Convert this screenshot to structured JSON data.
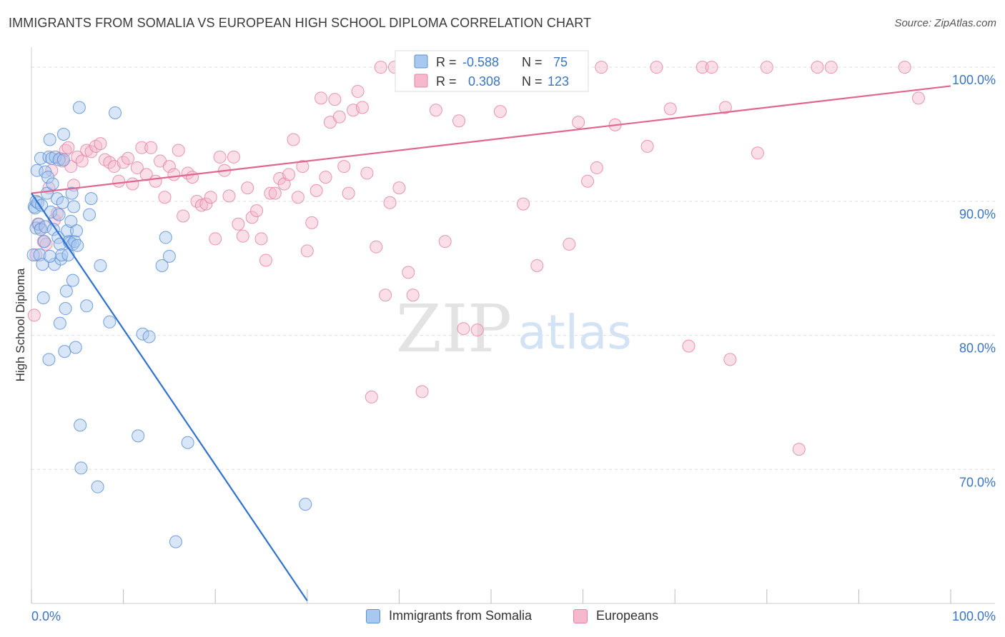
{
  "header": {
    "title": "IMMIGRANTS FROM SOMALIA VS EUROPEAN HIGH SCHOOL DIPLOMA CORRELATION CHART",
    "source": "Source: ZipAtlas.com"
  },
  "watermark": {
    "part1": "ZIP",
    "part2": "atlas"
  },
  "legend_top": {
    "rows": [
      {
        "r_label": "R = ",
        "r_value": "-0.588",
        "n_label": "N = ",
        "n_value": "75"
      },
      {
        "r_label": "R = ",
        "r_value": "0.308",
        "n_label": "N = ",
        "n_value": "123"
      }
    ]
  },
  "chart_data": {
    "type": "scatter",
    "title": "IMMIGRANTS FROM SOMALIA VS EUROPEAN HIGH SCHOOL DIPLOMA CORRELATION CHART",
    "xlabel": "",
    "ylabel": "High School Diploma",
    "xlim": [
      0,
      100
    ],
    "ylim": [
      60,
      101.5
    ],
    "x_tick_labels": [
      "0.0%",
      "100.0%"
    ],
    "y_ticks": [
      {
        "value": 70,
        "label": "70.0%"
      },
      {
        "value": 80,
        "label": "80.0%"
      },
      {
        "value": 90,
        "label": "90.0%"
      },
      {
        "value": 100,
        "label": "100.0%"
      }
    ],
    "grid": true,
    "legend_placement": "bottom",
    "colors": {
      "blue_fill": "#a8c8f0",
      "blue_stroke": "#5b8fd6",
      "blue_line": "#2f72d0",
      "pink_fill": "#f5b8cd",
      "pink_stroke": "#e583a6",
      "pink_line": "#e0668f",
      "tick_text": "#3b74c4",
      "grid": "#dddddd"
    },
    "series": [
      {
        "name": "Immigrants from Somalia",
        "r": -0.588,
        "n": 75,
        "trend": {
          "x0": 0,
          "y0": 90.6,
          "x1": 30.0,
          "y1": 60.2
        },
        "points": [
          [
            0.2,
            86.0
          ],
          [
            0.3,
            89.6
          ],
          [
            0.4,
            89.5
          ],
          [
            0.5,
            90.0
          ],
          [
            0.5,
            88.0
          ],
          [
            0.6,
            92.3
          ],
          [
            0.7,
            89.9
          ],
          [
            0.8,
            88.3
          ],
          [
            0.9,
            86.0
          ],
          [
            1.0,
            93.2
          ],
          [
            1.0,
            87.9
          ],
          [
            1.1,
            89.7
          ],
          [
            1.2,
            85.3
          ],
          [
            1.3,
            82.8
          ],
          [
            1.4,
            87.0
          ],
          [
            1.5,
            88.1
          ],
          [
            1.5,
            92.2
          ],
          [
            1.7,
            90.6
          ],
          [
            1.8,
            91.8
          ],
          [
            1.9,
            93.3
          ],
          [
            1.9,
            78.2
          ],
          [
            2.0,
            94.6
          ],
          [
            2.1,
            89.2
          ],
          [
            2.2,
            93.2
          ],
          [
            2.3,
            91.3
          ],
          [
            2.4,
            87.9
          ],
          [
            2.5,
            85.3
          ],
          [
            2.6,
            93.3
          ],
          [
            2.8,
            90.2
          ],
          [
            2.9,
            87.3
          ],
          [
            3.0,
            93.1
          ],
          [
            3.1,
            86.8
          ],
          [
            3.1,
            80.9
          ],
          [
            3.2,
            85.7
          ],
          [
            3.3,
            86.0
          ],
          [
            3.4,
            89.9
          ],
          [
            3.5,
            95.0
          ],
          [
            3.5,
            93.1
          ],
          [
            3.6,
            78.8
          ],
          [
            3.7,
            82.0
          ],
          [
            3.8,
            83.3
          ],
          [
            3.9,
            87.8
          ],
          [
            4.0,
            86.0
          ],
          [
            4.1,
            87.0
          ],
          [
            4.2,
            86.9
          ],
          [
            4.3,
            88.5
          ],
          [
            4.4,
            90.6
          ],
          [
            4.5,
            86.8
          ],
          [
            4.5,
            84.1
          ],
          [
            4.6,
            89.6
          ],
          [
            4.7,
            87.0
          ],
          [
            4.8,
            79.1
          ],
          [
            4.9,
            87.8
          ],
          [
            5.0,
            86.7
          ],
          [
            5.2,
            97.0
          ],
          [
            5.3,
            73.3
          ],
          [
            5.4,
            70.1
          ],
          [
            6.3,
            89.0
          ],
          [
            6.0,
            82.2
          ],
          [
            7.2,
            68.7
          ],
          [
            7.5,
            85.2
          ],
          [
            8.5,
            81.0
          ],
          [
            9.1,
            96.6
          ],
          [
            11.6,
            72.5
          ],
          [
            12.1,
            80.1
          ],
          [
            12.8,
            79.9
          ],
          [
            14.2,
            85.2
          ],
          [
            14.6,
            87.3
          ],
          [
            15.0,
            85.9
          ],
          [
            15.7,
            64.6
          ],
          [
            17.0,
            72.0
          ],
          [
            29.8,
            67.4
          ],
          [
            3.0,
            89.0
          ],
          [
            2.0,
            85.9
          ],
          [
            6.5,
            90.2
          ]
        ]
      },
      {
        "name": "Europeans",
        "r": 0.308,
        "n": 123,
        "trend": {
          "x0": 0,
          "y0": 90.6,
          "x1": 100,
          "y1": 98.6
        },
        "points": [
          [
            0.3,
            81.5
          ],
          [
            0.5,
            86.0
          ],
          [
            0.7,
            88.3
          ],
          [
            1.0,
            88.0
          ],
          [
            1.3,
            87.0
          ],
          [
            1.6,
            86.8
          ],
          [
            1.9,
            91.0
          ],
          [
            2.2,
            92.3
          ],
          [
            2.5,
            88.6
          ],
          [
            2.8,
            89.1
          ],
          [
            3.1,
            93.2
          ],
          [
            3.4,
            93.0
          ],
          [
            3.7,
            93.8
          ],
          [
            4.0,
            94.0
          ],
          [
            4.3,
            92.6
          ],
          [
            4.6,
            91.2
          ],
          [
            5.0,
            93.3
          ],
          [
            5.5,
            93.0
          ],
          [
            6.0,
            93.8
          ],
          [
            6.5,
            93.7
          ],
          [
            7.0,
            94.1
          ],
          [
            7.5,
            94.3
          ],
          [
            8.0,
            93.1
          ],
          [
            8.5,
            92.9
          ],
          [
            9.0,
            92.6
          ],
          [
            9.5,
            91.5
          ],
          [
            10.0,
            92.9
          ],
          [
            10.5,
            93.2
          ],
          [
            11.0,
            91.3
          ],
          [
            11.5,
            92.5
          ],
          [
            12.0,
            94.0
          ],
          [
            12.5,
            92.0
          ],
          [
            13.0,
            94.0
          ],
          [
            13.5,
            91.5
          ],
          [
            14.0,
            93.0
          ],
          [
            14.5,
            90.3
          ],
          [
            15.0,
            92.6
          ],
          [
            15.5,
            92.0
          ],
          [
            16.0,
            93.8
          ],
          [
            16.5,
            88.9
          ],
          [
            17.0,
            92.1
          ],
          [
            17.5,
            91.8
          ],
          [
            18.0,
            90.0
          ],
          [
            18.5,
            89.7
          ],
          [
            19.0,
            89.8
          ],
          [
            19.5,
            90.3
          ],
          [
            20.0,
            87.2
          ],
          [
            20.5,
            93.3
          ],
          [
            21.0,
            92.3
          ],
          [
            21.5,
            90.4
          ],
          [
            22.0,
            93.3
          ],
          [
            22.5,
            88.3
          ],
          [
            23.0,
            87.4
          ],
          [
            23.5,
            91.0
          ],
          [
            24.0,
            88.8
          ],
          [
            24.5,
            89.3
          ],
          [
            25.0,
            87.2
          ],
          [
            25.5,
            85.6
          ],
          [
            26.0,
            90.6
          ],
          [
            26.5,
            90.6
          ],
          [
            27.0,
            91.7
          ],
          [
            27.5,
            91.3
          ],
          [
            28.0,
            92.0
          ],
          [
            28.5,
            94.6
          ],
          [
            29.0,
            90.3
          ],
          [
            29.5,
            92.6
          ],
          [
            30.0,
            86.3
          ],
          [
            30.5,
            88.4
          ],
          [
            31.0,
            90.8
          ],
          [
            31.5,
            97.7
          ],
          [
            32.0,
            91.8
          ],
          [
            32.5,
            95.9
          ],
          [
            33.0,
            97.6
          ],
          [
            33.5,
            96.3
          ],
          [
            34.0,
            92.6
          ],
          [
            34.5,
            90.6
          ],
          [
            35.0,
            96.8
          ],
          [
            35.5,
            98.2
          ],
          [
            36.0,
            97.0
          ],
          [
            36.5,
            92.1
          ],
          [
            37.0,
            75.4
          ],
          [
            37.5,
            86.6
          ],
          [
            38.0,
            100.0
          ],
          [
            38.5,
            83.0
          ],
          [
            39.0,
            89.9
          ],
          [
            39.5,
            100.0
          ],
          [
            40.0,
            91.0
          ],
          [
            41.0,
            84.7
          ],
          [
            41.5,
            83.0
          ],
          [
            42.5,
            75.8
          ],
          [
            43.0,
            99.1
          ],
          [
            44.0,
            96.8
          ],
          [
            45.0,
            87.0
          ],
          [
            46.5,
            96.0
          ],
          [
            47.0,
            80.5
          ],
          [
            48.5,
            80.4
          ],
          [
            49.5,
            100.0
          ],
          [
            51.0,
            96.7
          ],
          [
            53.5,
            89.8
          ],
          [
            55.0,
            85.2
          ],
          [
            56.0,
            100.0
          ],
          [
            58.5,
            86.8
          ],
          [
            59.0,
            100.0
          ],
          [
            59.5,
            95.9
          ],
          [
            60.5,
            91.5
          ],
          [
            61.5,
            92.5
          ],
          [
            62.0,
            100.0
          ],
          [
            63.5,
            95.7
          ],
          [
            67.0,
            94.1
          ],
          [
            68.0,
            100.0
          ],
          [
            69.5,
            96.9
          ],
          [
            71.5,
            79.2
          ],
          [
            73.0,
            100.0
          ],
          [
            74.0,
            100.0
          ],
          [
            75.5,
            97.0
          ],
          [
            76.0,
            78.2
          ],
          [
            79.0,
            93.6
          ],
          [
            80.0,
            100.0
          ],
          [
            83.5,
            71.5
          ],
          [
            85.5,
            100.0
          ],
          [
            87.0,
            100.0
          ],
          [
            95.0,
            100.0
          ],
          [
            96.5,
            97.7
          ]
        ]
      }
    ]
  },
  "legend_bottom": {
    "items": [
      {
        "label": "Immigrants from Somalia"
      },
      {
        "label": "Europeans"
      }
    ]
  }
}
